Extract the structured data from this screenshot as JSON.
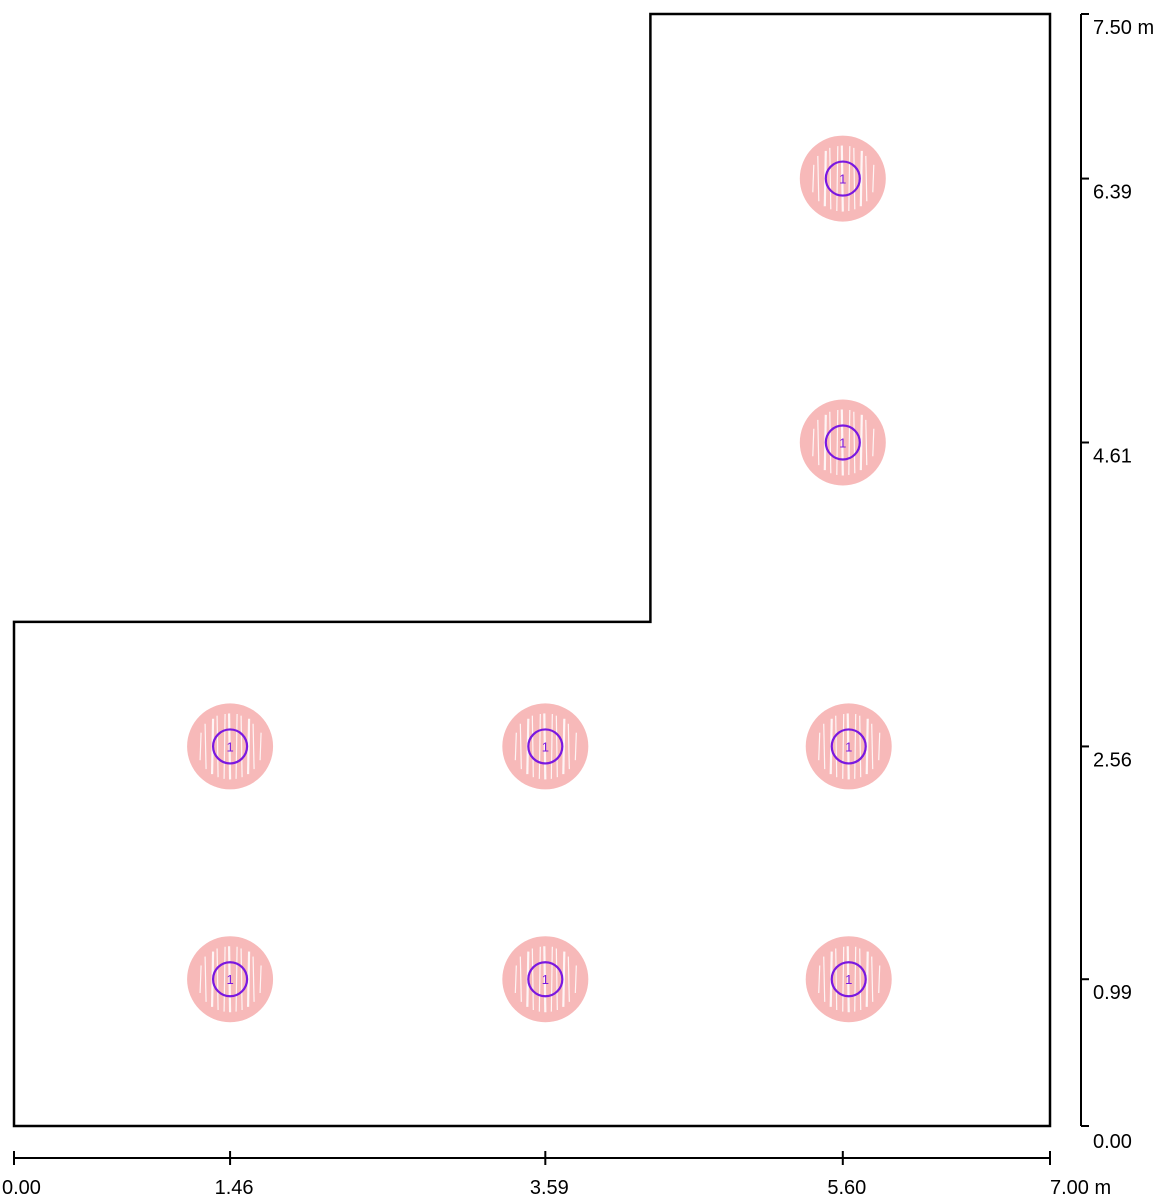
{
  "plan": {
    "outline_m": [
      [
        0,
        0
      ],
      [
        7.0,
        0
      ],
      [
        7.0,
        7.5
      ],
      [
        4.3,
        7.5
      ],
      [
        4.3,
        3.4
      ],
      [
        0,
        3.4
      ]
    ],
    "width_m": 7.0,
    "height_m": 7.5
  },
  "x_axis": {
    "ticks": [
      {
        "value": 0.0,
        "label": "0.00"
      },
      {
        "value": 1.46,
        "label": "1.46"
      },
      {
        "value": 3.59,
        "label": "3.59"
      },
      {
        "value": 5.6,
        "label": "5.60"
      },
      {
        "value": 7.0,
        "label": "7.00 m"
      }
    ]
  },
  "y_axis": {
    "ticks": [
      {
        "value": 0.0,
        "label": "0.00"
      },
      {
        "value": 0.99,
        "label": "0.99"
      },
      {
        "value": 2.56,
        "label": "2.56"
      },
      {
        "value": 4.61,
        "label": "4.61"
      },
      {
        "value": 6.39,
        "label": "6.39"
      },
      {
        "value": 7.5,
        "label": "7.50 m"
      }
    ]
  },
  "luminaires": [
    {
      "x": 1.46,
      "y": 0.99,
      "label": "1"
    },
    {
      "x": 3.59,
      "y": 0.99,
      "label": "1"
    },
    {
      "x": 5.64,
      "y": 0.99,
      "label": "1"
    },
    {
      "x": 1.46,
      "y": 2.56,
      "label": "1"
    },
    {
      "x": 3.59,
      "y": 2.56,
      "label": "1"
    },
    {
      "x": 5.64,
      "y": 2.56,
      "label": "1"
    },
    {
      "x": 5.6,
      "y": 4.61,
      "label": "1"
    },
    {
      "x": 5.6,
      "y": 6.39,
      "label": "1"
    }
  ],
  "colors": {
    "outline": "#000000",
    "glow": "#f7b9b9",
    "glow_streak": "#ffffff",
    "fixture_ring": "#7a18e0",
    "fixture_text": "#7a18e0"
  }
}
